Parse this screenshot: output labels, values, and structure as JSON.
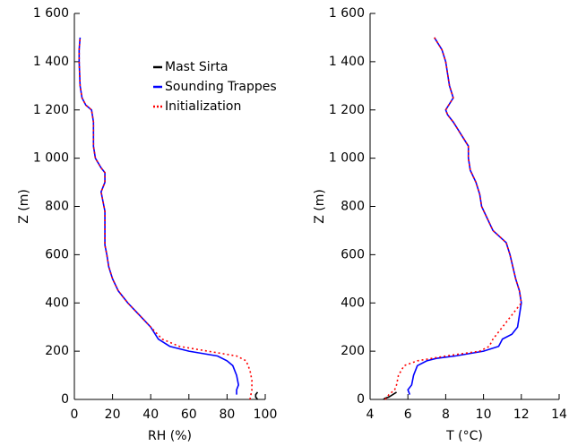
{
  "chart_data": [
    {
      "type": "line",
      "xlabel": "RH (%)",
      "ylabel": "Z (m)",
      "xlim": [
        0,
        100
      ],
      "xticks": [
        0,
        20,
        40,
        60,
        80,
        100
      ],
      "ylim": [
        0,
        1600
      ],
      "yticks": [
        0,
        200,
        400,
        600,
        800,
        {
          "value": 1000,
          "label": "1 000"
        },
        {
          "value": 1200,
          "label": "1 200"
        },
        {
          "value": 1400,
          "label": "1 400"
        },
        {
          "value": 1600,
          "label": "1 600"
        }
      ],
      "legend": "upper center",
      "series": [
        {
          "name": "Mast Sirta",
          "color": "#000000",
          "linestyle": "solid",
          "x": [
            96,
            95,
            95,
            96
          ],
          "values": [
            0,
            10,
            20,
            30
          ]
        },
        {
          "name": "Sounding Trappes",
          "color": "#0000ff",
          "linestyle": "solid",
          "x": [
            85,
            85,
            86,
            85,
            83,
            80,
            75,
            60,
            50,
            44,
            40,
            34,
            28,
            23,
            20,
            18,
            17,
            16,
            16,
            16,
            15,
            14,
            15,
            16,
            16,
            14,
            11,
            10,
            10,
            10,
            9,
            6,
            4,
            3,
            2.5,
            2.5,
            3
          ],
          "values": [
            20,
            40,
            60,
            100,
            140,
            160,
            180,
            200,
            220,
            250,
            300,
            350,
            400,
            450,
            500,
            550,
            600,
            640,
            700,
            780,
            820,
            860,
            880,
            900,
            940,
            960,
            1000,
            1050,
            1100,
            1150,
            1200,
            1220,
            1250,
            1300,
            1400,
            1450,
            1500
          ]
        },
        {
          "name": "Initialization",
          "color": "#ff0000",
          "linestyle": "dotted",
          "x": [
            92,
            93,
            93,
            92,
            90,
            85,
            70,
            55,
            46,
            40,
            34,
            28,
            23,
            20,
            18,
            17,
            16,
            16,
            16,
            15,
            14,
            15,
            16,
            16,
            14,
            11,
            10,
            10,
            10,
            9,
            6,
            4,
            3,
            2.5,
            2.5,
            3
          ],
          "values": [
            0,
            40,
            80,
            120,
            160,
            180,
            200,
            220,
            250,
            300,
            350,
            400,
            450,
            500,
            550,
            600,
            640,
            700,
            780,
            820,
            860,
            880,
            900,
            940,
            960,
            1000,
            1050,
            1100,
            1150,
            1200,
            1220,
            1250,
            1300,
            1400,
            1450,
            1500
          ]
        }
      ]
    },
    {
      "type": "line",
      "xlabel": "T (°C)",
      "ylabel": "Z (m)",
      "xlim": [
        4,
        14
      ],
      "xticks": [
        4,
        6,
        8,
        10,
        12,
        14
      ],
      "ylim": [
        0,
        1600
      ],
      "yticks": [
        0,
        200,
        400,
        600,
        800,
        {
          "value": 1000,
          "label": "1 000"
        },
        {
          "value": 1200,
          "label": "1 200"
        },
        {
          "value": 1400,
          "label": "1 400"
        },
        {
          "value": 1600,
          "label": "1 600"
        }
      ],
      "series": [
        {
          "name": "Mast Sirta",
          "color": "#000000",
          "linestyle": "solid",
          "x": [
            4.7,
            4.8,
            5.0,
            5.2,
            5.4
          ],
          "values": [
            0,
            5,
            10,
            20,
            30
          ]
        },
        {
          "name": "Sounding Trappes",
          "color": "#0000ff",
          "linestyle": "solid",
          "x": [
            6.1,
            6.0,
            6.2,
            6.3,
            6.5,
            7,
            7.5,
            8.5,
            10.0,
            10.8,
            11.0,
            11.5,
            11.8,
            11.9,
            12.0,
            11.9,
            11.7,
            11.4,
            11.2,
            10.5,
            9.9,
            9.8,
            9.6,
            9.3,
            9.2,
            9.2,
            8.8,
            8.4,
            8.1,
            8.0,
            8.4,
            8.2,
            8.0,
            7.8,
            7.4
          ],
          "values": [
            20,
            40,
            60,
            100,
            140,
            160,
            170,
            180,
            200,
            220,
            250,
            270,
            300,
            350,
            400,
            450,
            500,
            600,
            650,
            700,
            800,
            850,
            900,
            950,
            1000,
            1050,
            1100,
            1150,
            1180,
            1200,
            1250,
            1300,
            1400,
            1450,
            1500
          ]
        },
        {
          "name": "Initialization",
          "color": "#ff0000",
          "linestyle": "dotted",
          "x": [
            4.8,
            5.0,
            5.3,
            5.4,
            5.5,
            5.8,
            6.5,
            8.0,
            9.8,
            10.3,
            10.5,
            11.0,
            11.5,
            11.8,
            12.0,
            11.9,
            11.7,
            11.4,
            11.2,
            10.5,
            9.9,
            9.8,
            9.6,
            9.3,
            9.2,
            9.2,
            8.8,
            8.4,
            8.1,
            8.0,
            8.4,
            8.2,
            8.0,
            7.8,
            7.4
          ],
          "values": [
            0,
            20,
            40,
            60,
            100,
            140,
            160,
            180,
            200,
            220,
            250,
            300,
            350,
            380,
            400,
            450,
            500,
            600,
            650,
            700,
            800,
            850,
            900,
            950,
            1000,
            1050,
            1100,
            1150,
            1180,
            1200,
            1250,
            1300,
            1400,
            1450,
            1500
          ]
        }
      ]
    }
  ]
}
